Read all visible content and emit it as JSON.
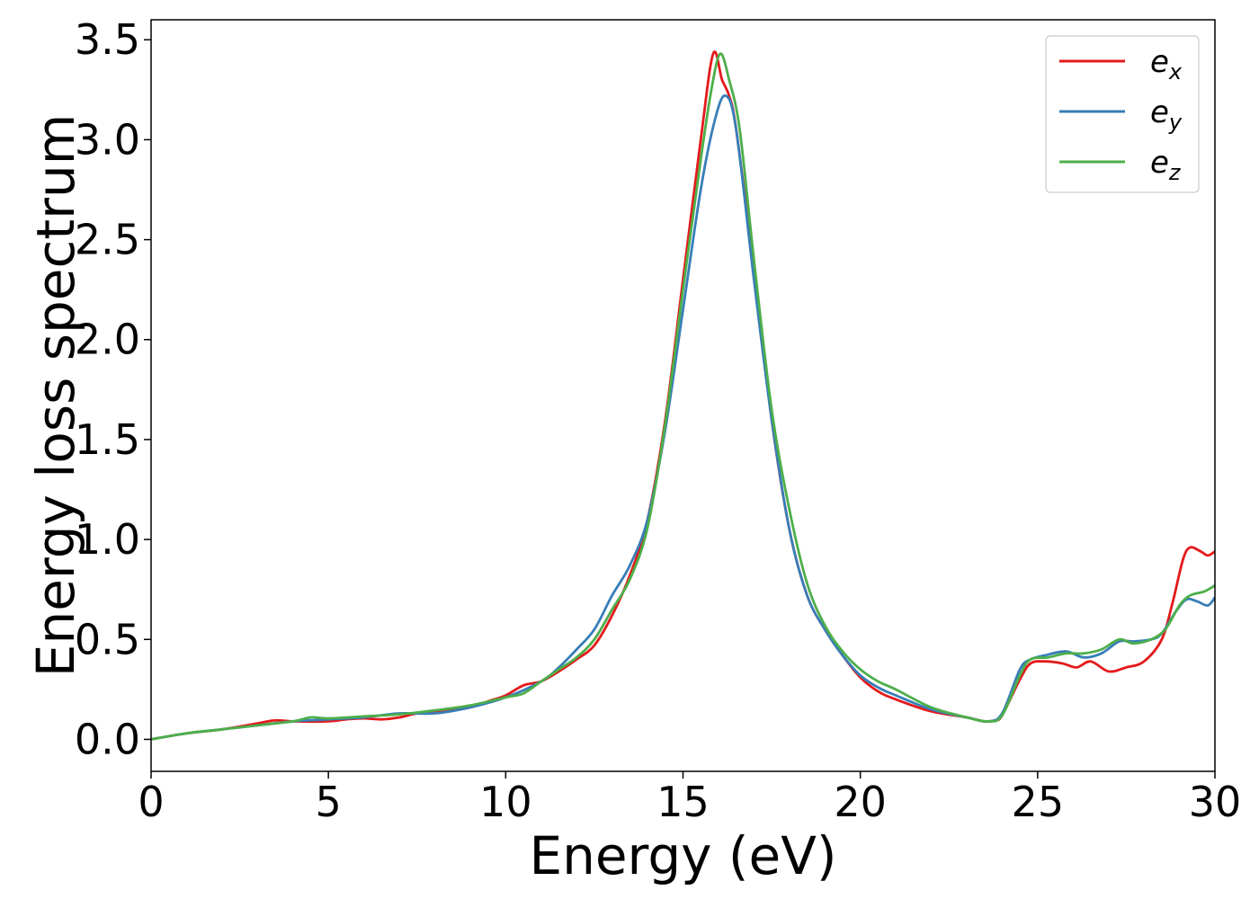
{
  "chart_data": {
    "type": "line",
    "xlabel": "Energy (eV)",
    "ylabel": "Energy loss spectrum",
    "xlim": [
      0,
      30
    ],
    "ylim": [
      -0.16,
      3.6
    ],
    "xticks": [
      0,
      5,
      10,
      15,
      20,
      25,
      30
    ],
    "xtick_labels": [
      "0",
      "5",
      "10",
      "15",
      "20",
      "25",
      "30"
    ],
    "yticks": [
      0.0,
      0.5,
      1.0,
      1.5,
      2.0,
      2.5,
      3.0,
      3.5
    ],
    "ytick_labels": [
      "0.0",
      "0.5",
      "1.0",
      "1.5",
      "2.0",
      "2.5",
      "3.0",
      "3.5"
    ],
    "grid": false,
    "legend_position": "top-right",
    "series": [
      {
        "name": "e",
        "subscript": "x",
        "color": "#e41a1c",
        "points": [
          [
            0,
            0
          ],
          [
            1,
            0.03
          ],
          [
            2,
            0.05
          ],
          [
            3,
            0.08
          ],
          [
            3.5,
            0.095
          ],
          [
            4,
            0.09
          ],
          [
            5,
            0.09
          ],
          [
            5.5,
            0.1
          ],
          [
            6,
            0.105
          ],
          [
            6.5,
            0.1
          ],
          [
            7,
            0.11
          ],
          [
            7.5,
            0.13
          ],
          [
            8,
            0.135
          ],
          [
            9,
            0.16
          ],
          [
            9.5,
            0.19
          ],
          [
            10,
            0.22
          ],
          [
            10.5,
            0.27
          ],
          [
            11,
            0.29
          ],
          [
            11.5,
            0.34
          ],
          [
            12,
            0.4
          ],
          [
            12.5,
            0.47
          ],
          [
            13,
            0.62
          ],
          [
            13.5,
            0.82
          ],
          [
            14,
            1.1
          ],
          [
            14.5,
            1.6
          ],
          [
            15,
            2.3
          ],
          [
            15.5,
            3.0
          ],
          [
            15.85,
            3.43
          ],
          [
            16.1,
            3.3
          ],
          [
            16.3,
            3.22
          ],
          [
            16.5,
            3.05
          ],
          [
            17,
            2.35
          ],
          [
            17.5,
            1.6
          ],
          [
            18,
            1.05
          ],
          [
            18.5,
            0.72
          ],
          [
            19,
            0.55
          ],
          [
            19.5,
            0.42
          ],
          [
            20,
            0.31
          ],
          [
            20.5,
            0.24
          ],
          [
            21,
            0.2
          ],
          [
            22,
            0.14
          ],
          [
            23,
            0.11
          ],
          [
            23.5,
            0.09
          ],
          [
            23.8,
            0.095
          ],
          [
            24,
            0.12
          ],
          [
            24.5,
            0.3
          ],
          [
            24.8,
            0.38
          ],
          [
            25.2,
            0.39
          ],
          [
            25.7,
            0.38
          ],
          [
            26.1,
            0.36
          ],
          [
            26.5,
            0.39
          ],
          [
            27,
            0.34
          ],
          [
            27.5,
            0.36
          ],
          [
            28,
            0.39
          ],
          [
            28.5,
            0.5
          ],
          [
            28.8,
            0.68
          ],
          [
            29.1,
            0.9
          ],
          [
            29.3,
            0.96
          ],
          [
            29.6,
            0.94
          ],
          [
            29.8,
            0.92
          ],
          [
            30,
            0.94
          ]
        ]
      },
      {
        "name": "e",
        "subscript": "y",
        "color": "#377eb8",
        "points": [
          [
            0,
            0
          ],
          [
            1,
            0.03
          ],
          [
            2,
            0.05
          ],
          [
            3,
            0.07
          ],
          [
            4,
            0.09
          ],
          [
            5,
            0.1
          ],
          [
            6,
            0.11
          ],
          [
            7,
            0.13
          ],
          [
            8,
            0.13
          ],
          [
            9,
            0.16
          ],
          [
            10,
            0.21
          ],
          [
            11,
            0.29
          ],
          [
            11.5,
            0.36
          ],
          [
            12,
            0.45
          ],
          [
            12.5,
            0.55
          ],
          [
            13,
            0.72
          ],
          [
            13.5,
            0.87
          ],
          [
            14,
            1.1
          ],
          [
            14.5,
            1.55
          ],
          [
            15,
            2.15
          ],
          [
            15.5,
            2.75
          ],
          [
            15.9,
            3.1
          ],
          [
            16.2,
            3.22
          ],
          [
            16.5,
            3.05
          ],
          [
            17,
            2.3
          ],
          [
            17.5,
            1.6
          ],
          [
            18,
            1.05
          ],
          [
            18.5,
            0.72
          ],
          [
            19,
            0.55
          ],
          [
            19.5,
            0.42
          ],
          [
            20,
            0.32
          ],
          [
            20.5,
            0.26
          ],
          [
            21,
            0.22
          ],
          [
            22,
            0.15
          ],
          [
            23,
            0.11
          ],
          [
            23.6,
            0.09
          ],
          [
            24,
            0.13
          ],
          [
            24.5,
            0.35
          ],
          [
            24.8,
            0.4
          ],
          [
            25.2,
            0.42
          ],
          [
            25.8,
            0.44
          ],
          [
            26.3,
            0.41
          ],
          [
            26.8,
            0.43
          ],
          [
            27.3,
            0.49
          ],
          [
            27.7,
            0.49
          ],
          [
            28.2,
            0.5
          ],
          [
            28.5,
            0.53
          ],
          [
            28.9,
            0.64
          ],
          [
            29.2,
            0.7
          ],
          [
            29.5,
            0.69
          ],
          [
            29.8,
            0.67
          ],
          [
            30,
            0.71
          ]
        ]
      },
      {
        "name": "e",
        "subscript": "z",
        "color": "#4daf4a",
        "points": [
          [
            0,
            0
          ],
          [
            1,
            0.03
          ],
          [
            2,
            0.05
          ],
          [
            3,
            0.07
          ],
          [
            4,
            0.09
          ],
          [
            4.5,
            0.11
          ],
          [
            5,
            0.105
          ],
          [
            6,
            0.115
          ],
          [
            7,
            0.125
          ],
          [
            8,
            0.145
          ],
          [
            9,
            0.17
          ],
          [
            10,
            0.21
          ],
          [
            10.5,
            0.23
          ],
          [
            11,
            0.29
          ],
          [
            11.5,
            0.35
          ],
          [
            12,
            0.41
          ],
          [
            12.5,
            0.5
          ],
          [
            13,
            0.65
          ],
          [
            13.5,
            0.8
          ],
          [
            14,
            1.06
          ],
          [
            14.5,
            1.58
          ],
          [
            15,
            2.25
          ],
          [
            15.5,
            2.9
          ],
          [
            15.8,
            3.25
          ],
          [
            16.05,
            3.43
          ],
          [
            16.3,
            3.3
          ],
          [
            16.6,
            3.05
          ],
          [
            17,
            2.4
          ],
          [
            17.5,
            1.65
          ],
          [
            18,
            1.15
          ],
          [
            18.5,
            0.78
          ],
          [
            19,
            0.57
          ],
          [
            19.5,
            0.44
          ],
          [
            20,
            0.35
          ],
          [
            20.5,
            0.29
          ],
          [
            21,
            0.25
          ],
          [
            22,
            0.16
          ],
          [
            23,
            0.11
          ],
          [
            23.6,
            0.09
          ],
          [
            24,
            0.12
          ],
          [
            24.5,
            0.32
          ],
          [
            24.8,
            0.4
          ],
          [
            25.3,
            0.41
          ],
          [
            25.8,
            0.43
          ],
          [
            26.3,
            0.43
          ],
          [
            26.8,
            0.45
          ],
          [
            27.3,
            0.5
          ],
          [
            27.7,
            0.48
          ],
          [
            28.2,
            0.5
          ],
          [
            28.6,
            0.55
          ],
          [
            29,
            0.67
          ],
          [
            29.3,
            0.72
          ],
          [
            29.7,
            0.74
          ],
          [
            30,
            0.77
          ]
        ]
      }
    ]
  }
}
